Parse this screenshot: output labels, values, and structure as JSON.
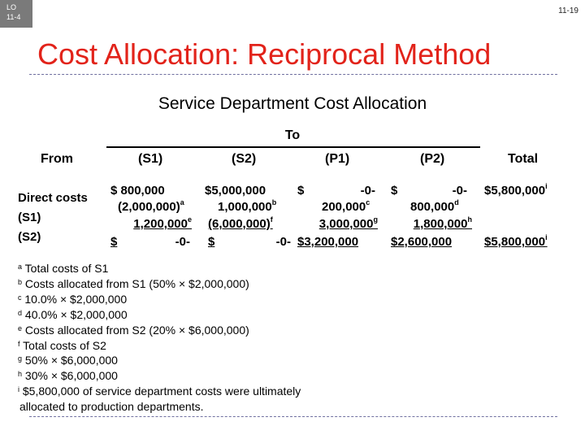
{
  "header": {
    "lo_line1": "LO",
    "lo_line2": "11-4",
    "page_number": "11-19",
    "title": "Cost Allocation: Reciprocal Method",
    "subtitle": "Service Department Cost Allocation"
  },
  "table": {
    "to_label": "To",
    "from_label": "From",
    "columns": [
      "(S1)",
      "(S2)",
      "(P1)",
      "(P2)",
      "Total"
    ],
    "row_labels": [
      "Direct costs",
      "(S1)",
      "(S2)"
    ],
    "s1": {
      "r0": "$   800,000",
      "r1": "(2,000,000)",
      "r1_sup": "a",
      "r2": "1,200,000",
      "r2_sup": "e",
      "r3_left": "$",
      "r3_right": "-0-"
    },
    "s2": {
      "r0": "$5,000,000",
      "r1": "1,000,000",
      "r1_sup": "b",
      "r2": "(6,000,000)",
      "r2_sup": "f",
      "r3_left": "$",
      "r3_right": "-0-"
    },
    "p1": {
      "r0_left": "$",
      "r0_right": "-0-",
      "r1": "200,000",
      "r1_sup": "c",
      "r2": "3,000,000",
      "r2_sup": "g",
      "r3": "$3,200,000"
    },
    "p2": {
      "r0_left": "$",
      "r0_right": "-0-",
      "r1": "800,000",
      "r1_sup": "d",
      "r2": "1,800,000",
      "r2_sup": "h",
      "r3": "$2,600,000"
    },
    "total": {
      "r0": "$5,800,000",
      "r0_sup": "i",
      "r3": "$5,800,000",
      "r3_sup": "i"
    }
  },
  "notes": [
    {
      "sup": "a",
      "text": " Total costs of S1"
    },
    {
      "sup": "b",
      "text": " Costs allocated from S1 (50% × $2,000,000)"
    },
    {
      "sup": "c",
      "text": " 10.0% × $2,000,000"
    },
    {
      "sup": "d",
      "text": " 40.0% × $2,000,000"
    },
    {
      "sup": "e",
      "text": " Costs allocated from S2 (20% × $6,000,000)"
    },
    {
      "sup": "f",
      "text": " Total costs of S2"
    },
    {
      "sup": "g",
      "text": " 50% × $6,000,000"
    },
    {
      "sup": "h",
      "text": " 30% × $6,000,000"
    },
    {
      "sup": "i",
      "text": " $5,800,000 of service department costs were ultimately"
    }
  ],
  "notes_continuation": "allocated to production departments."
}
